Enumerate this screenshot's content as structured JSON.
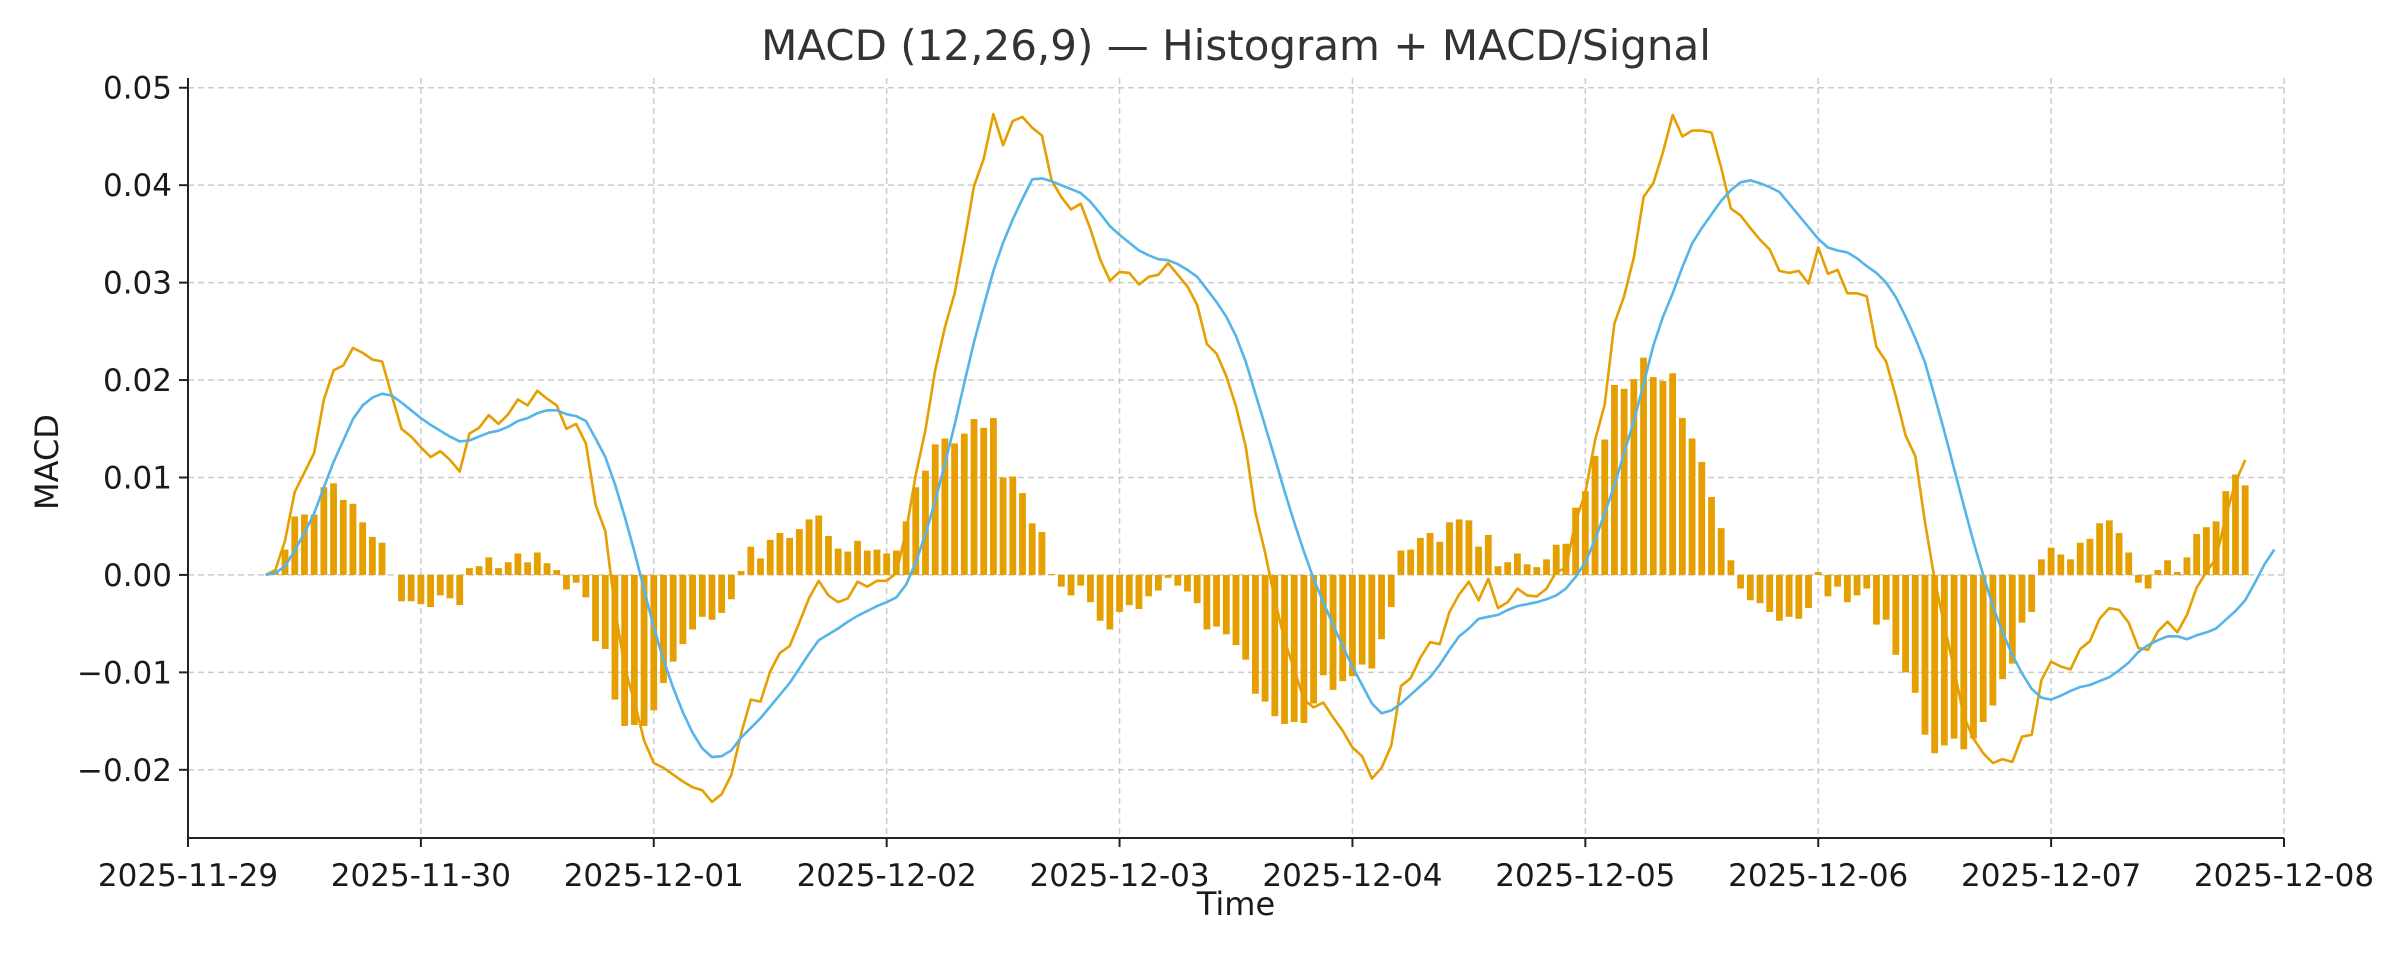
{
  "chart_data": {
    "type": "bar+line",
    "title": "MACD (12,26,9) — Histogram + MACD/Signal",
    "xlabel": "Time",
    "ylabel": "MACD",
    "xlim": [
      "2025-11-29 00:00",
      "2025-12-08 00:00"
    ],
    "ylim": [
      -0.027,
      0.051
    ],
    "x_ticks": [
      "2025-11-29",
      "2025-11-30",
      "2025-12-01",
      "2025-12-02",
      "2025-12-03",
      "2025-12-04",
      "2025-12-05",
      "2025-12-06",
      "2025-12-07",
      "2025-12-08"
    ],
    "y_ticks": [
      {
        "value": -0.02,
        "label": "−0.02"
      },
      {
        "value": -0.01,
        "label": "−0.01"
      },
      {
        "value": 0.0,
        "label": "0.00"
      },
      {
        "value": 0.01,
        "label": "0.01"
      },
      {
        "value": 0.02,
        "label": "0.02"
      },
      {
        "value": 0.03,
        "label": "0.03"
      },
      {
        "value": 0.04,
        "label": "0.04"
      },
      {
        "value": 0.05,
        "label": "0.05"
      }
    ],
    "grid": true,
    "sampling": {
      "start": "2025-11-29 08:00",
      "step_hours": 1
    },
    "colors": {
      "macd": "#E69F00",
      "signal": "#56B4E9",
      "histogram": "#E69F00"
    },
    "series": [
      {
        "kind": "line",
        "role": "macd",
        "values": [
          0.0,
          0.0005,
          0.0035,
          0.0085,
          0.0105,
          0.0125,
          0.018,
          0.021,
          0.0215,
          0.0233,
          0.0228,
          0.0221,
          0.0219,
          0.0184,
          0.015,
          0.0142,
          0.0131,
          0.0121,
          0.0127,
          0.0118,
          0.0106,
          0.0145,
          0.0151,
          0.0164,
          0.0155,
          0.0165,
          0.018,
          0.0174,
          0.0189,
          0.0181,
          0.0174,
          0.015,
          0.0155,
          0.0135,
          0.0072,
          0.0045,
          -0.0035,
          -0.0095,
          -0.013,
          -0.017,
          -0.0193,
          -0.0198,
          -0.0205,
          -0.0212,
          -0.0218,
          -0.0221,
          -0.0233,
          -0.0225,
          -0.0205,
          -0.0163,
          -0.0128,
          -0.013,
          -0.0099,
          -0.008,
          -0.0073,
          -0.0049,
          -0.0024,
          -0.0006,
          -0.0021,
          -0.0028,
          -0.0024,
          -0.0007,
          -0.0012,
          -0.0006,
          -0.0006,
          0.0002,
          0.0045,
          0.0103,
          0.0149,
          0.021,
          0.0254,
          0.0289,
          0.0342,
          0.0399,
          0.0427,
          0.0473,
          0.0441,
          0.0466,
          0.047,
          0.0459,
          0.0451,
          0.0405,
          0.0388,
          0.0375,
          0.0381,
          0.0355,
          0.0324,
          0.0302,
          0.0311,
          0.031,
          0.0298,
          0.0306,
          0.0308,
          0.032,
          0.0308,
          0.0296,
          0.0277,
          0.0237,
          0.0227,
          0.0204,
          0.0173,
          0.0132,
          0.0064,
          0.0023,
          -0.0025,
          -0.0067,
          -0.0097,
          -0.0128,
          -0.0136,
          -0.0131,
          -0.0146,
          -0.016,
          -0.0177,
          -0.0186,
          -0.0209,
          -0.0198,
          -0.0175,
          -0.0114,
          -0.0106,
          -0.0085,
          -0.0069,
          -0.0071,
          -0.0038,
          -0.002,
          -0.0007,
          -0.0026,
          -0.0004,
          -0.0034,
          -0.0028,
          -0.0014,
          -0.0021,
          -0.0022,
          -0.0014,
          0.0003,
          0.0007,
          0.0055,
          0.0084,
          0.0138,
          0.0175,
          0.0258,
          0.0286,
          0.0326,
          0.0388,
          0.0402,
          0.0434,
          0.0472,
          0.045,
          0.0456,
          0.0456,
          0.0454,
          0.0418,
          0.0376,
          0.0369,
          0.0356,
          0.0344,
          0.0334,
          0.0312,
          0.031,
          0.0312,
          0.0299,
          0.0336,
          0.0309,
          0.0313,
          0.0289,
          0.0289,
          0.0286,
          0.0234,
          0.0219,
          0.0183,
          0.0143,
          0.0122,
          0.0054,
          -0.0005,
          -0.0052,
          -0.0097,
          -0.0145,
          -0.0168,
          -0.0183,
          -0.0193,
          -0.0189,
          -0.0192,
          -0.0166,
          -0.0164,
          -0.0108,
          -0.0089,
          -0.0094,
          -0.0097,
          -0.0076,
          -0.0068,
          -0.0045,
          -0.0034,
          -0.0036,
          -0.0049,
          -0.0075,
          -0.0077,
          -0.0058,
          -0.0048,
          -0.0059,
          -0.0041,
          -0.0013,
          0.0003,
          0.0017,
          0.006,
          0.0095,
          0.0118
        ]
      },
      {
        "kind": "line",
        "role": "signal",
        "values": [
          0.0,
          0.0002,
          0.0009,
          0.0025,
          0.0043,
          0.0063,
          0.009,
          0.0116,
          0.0138,
          0.016,
          0.0174,
          0.0182,
          0.0186,
          0.0184,
          0.0177,
          0.0169,
          0.0161,
          0.0154,
          0.0148,
          0.0142,
          0.0137,
          0.0138,
          0.0142,
          0.0146,
          0.0148,
          0.0152,
          0.0158,
          0.0161,
          0.0166,
          0.0169,
          0.0169,
          0.0165,
          0.0163,
          0.0158,
          0.014,
          0.0121,
          0.0093,
          0.006,
          0.0024,
          -0.0015,
          -0.0054,
          -0.0087,
          -0.0116,
          -0.0141,
          -0.0162,
          -0.0178,
          -0.0187,
          -0.0186,
          -0.018,
          -0.0167,
          -0.0157,
          -0.0147,
          -0.0135,
          -0.0123,
          -0.0111,
          -0.0096,
          -0.0081,
          -0.0067,
          -0.0061,
          -0.0055,
          -0.0048,
          -0.0042,
          -0.0037,
          -0.0032,
          -0.0028,
          -0.0023,
          -0.001,
          0.0013,
          0.0042,
          0.0076,
          0.0114,
          0.0154,
          0.0197,
          0.0239,
          0.0276,
          0.0312,
          0.0341,
          0.0365,
          0.0386,
          0.0406,
          0.0407,
          0.0404,
          0.04,
          0.0396,
          0.0392,
          0.0383,
          0.0371,
          0.0358,
          0.0349,
          0.0341,
          0.0333,
          0.0328,
          0.0324,
          0.0323,
          0.0319,
          0.0313,
          0.0306,
          0.0293,
          0.028,
          0.0265,
          0.0245,
          0.0219,
          0.0186,
          0.0153,
          0.012,
          0.0086,
          0.0054,
          0.0024,
          -0.0004,
          -0.0028,
          -0.0051,
          -0.0073,
          -0.0094,
          -0.0113,
          -0.0132,
          -0.0142,
          -0.0139,
          -0.0132,
          -0.0123,
          -0.0114,
          -0.0105,
          -0.0092,
          -0.0077,
          -0.0063,
          -0.0055,
          -0.0045,
          -0.0043,
          -0.0041,
          -0.0036,
          -0.0032,
          -0.003,
          -0.0028,
          -0.0025,
          -0.0021,
          -0.0014,
          -0.0002,
          0.0013,
          0.0036,
          0.0063,
          0.0092,
          0.0125,
          0.0158,
          0.0196,
          0.0235,
          0.0265,
          0.0289,
          0.0316,
          0.034,
          0.0356,
          0.037,
          0.0384,
          0.0395,
          0.0403,
          0.0405,
          0.0402,
          0.0398,
          0.0393,
          0.0381,
          0.0369,
          0.0357,
          0.0345,
          0.0336,
          0.0333,
          0.0331,
          0.0325,
          0.0317,
          0.031,
          0.03,
          0.0285,
          0.0265,
          0.0243,
          0.0218,
          0.0183,
          0.0147,
          0.0109,
          0.0071,
          0.0034,
          0.0,
          -0.0032,
          -0.0059,
          -0.0082,
          -0.0101,
          -0.0117,
          -0.0126,
          -0.0128,
          -0.0124,
          -0.0119,
          -0.0115,
          -0.0113,
          -0.0109,
          -0.0105,
          -0.0098,
          -0.009,
          -0.0079,
          -0.0072,
          -0.0067,
          -0.0063,
          -0.0063,
          -0.0066,
          -0.0062,
          -0.0059,
          -0.0055,
          -0.0046,
          -0.0037,
          -0.0026,
          -0.0008,
          0.0011,
          0.0026
        ]
      },
      {
        "kind": "bar",
        "role": "histogram",
        "values": [
          0.0,
          0.0003,
          0.0026,
          0.006,
          0.0062,
          0.0062,
          0.009,
          0.0094,
          0.0077,
          0.0073,
          0.0054,
          0.0039,
          0.0033,
          0.0,
          -0.0027,
          -0.0027,
          -0.003,
          -0.0033,
          -0.0021,
          -0.0024,
          -0.0031,
          0.0007,
          0.0009,
          0.0018,
          0.0007,
          0.0013,
          0.0022,
          0.0013,
          0.0023,
          0.0012,
          0.0005,
          -0.0015,
          -0.0008,
          -0.0023,
          -0.0068,
          -0.0076,
          -0.0128,
          -0.0155,
          -0.0154,
          -0.0155,
          -0.0139,
          -0.0111,
          -0.0089,
          -0.0071,
          -0.0056,
          -0.0043,
          -0.0046,
          -0.0039,
          -0.0025,
          0.0004,
          0.0029,
          0.0017,
          0.0036,
          0.0043,
          0.0038,
          0.0047,
          0.0057,
          0.0061,
          0.004,
          0.0027,
          0.0024,
          0.0035,
          0.0025,
          0.0026,
          0.0022,
          0.0025,
          0.0055,
          0.009,
          0.0107,
          0.0134,
          0.014,
          0.0135,
          0.0145,
          0.016,
          0.0151,
          0.0161,
          0.01,
          0.0101,
          0.0084,
          0.0053,
          0.0044,
          0.0001,
          -0.0012,
          -0.0021,
          -0.0011,
          -0.0028,
          -0.0047,
          -0.0056,
          -0.0038,
          -0.0031,
          -0.0035,
          -0.0022,
          -0.0016,
          -0.0003,
          -0.0011,
          -0.0017,
          -0.0029,
          -0.0056,
          -0.0053,
          -0.0061,
          -0.0072,
          -0.0087,
          -0.0122,
          -0.013,
          -0.0145,
          -0.0153,
          -0.0151,
          -0.0152,
          -0.0132,
          -0.0103,
          -0.0118,
          -0.0109,
          -0.0104,
          -0.0092,
          -0.0096,
          -0.0066,
          -0.0033,
          0.0025,
          0.0026,
          0.0038,
          0.0043,
          0.0034,
          0.0054,
          0.0057,
          0.0056,
          0.0029,
          0.0041,
          0.0009,
          0.0013,
          0.0022,
          0.0011,
          0.0008,
          0.0016,
          0.0031,
          0.0032,
          0.0069,
          0.0086,
          0.0122,
          0.0139,
          0.0195,
          0.0191,
          0.0201,
          0.0223,
          0.0203,
          0.0199,
          0.0207,
          0.0161,
          0.014,
          0.0116,
          0.008,
          0.0048,
          0.0015,
          -0.0014,
          -0.0026,
          -0.0029,
          -0.0038,
          -0.0047,
          -0.0043,
          -0.0045,
          -0.0034,
          0.0003,
          -0.0022,
          -0.0012,
          -0.0028,
          -0.0021,
          -0.0014,
          -0.0051,
          -0.0046,
          -0.0082,
          -0.01,
          -0.0121,
          -0.0164,
          -0.0183,
          -0.0175,
          -0.0168,
          -0.0179,
          -0.0168,
          -0.0151,
          -0.0134,
          -0.0107,
          -0.0091,
          -0.0049,
          -0.0038,
          0.0016,
          0.0028,
          0.0021,
          0.0016,
          0.0033,
          0.0037,
          0.0053,
          0.0056,
          0.0043,
          0.0023,
          -0.0008,
          -0.0014,
          0.0005,
          0.0015,
          0.0003,
          0.0018,
          0.0042,
          0.0049,
          0.0055,
          0.0086,
          0.0103,
          0.0092
        ]
      }
    ]
  }
}
